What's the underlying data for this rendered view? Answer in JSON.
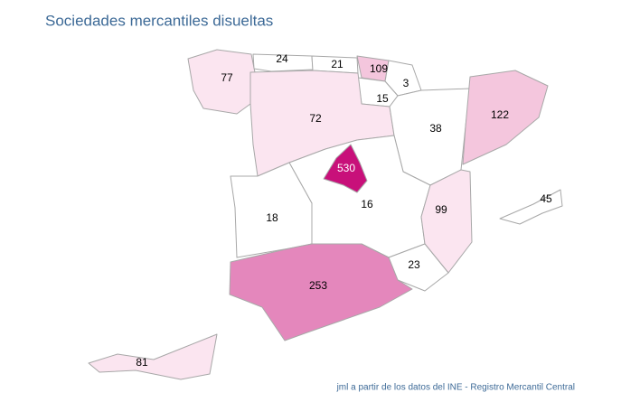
{
  "title": "Sociedades mercantiles disueltas",
  "regions": [
    {
      "value": 77,
      "color": "#fbe5f0"
    },
    {
      "value": 24,
      "color": "#ffffff"
    },
    {
      "value": 21,
      "color": "#ffffff"
    },
    {
      "value": 109,
      "color": "#f4c6dd"
    },
    {
      "value": 3,
      "color": "#ffffff"
    },
    {
      "value": 15,
      "color": "#ffffff"
    },
    {
      "value": 72,
      "color": "#fbe5f0"
    },
    {
      "value": 38,
      "color": "#ffffff"
    },
    {
      "value": 122,
      "color": "#f4c6dd"
    },
    {
      "value": 530,
      "color": "#c8107a"
    },
    {
      "value": 16,
      "color": "#ffffff"
    },
    {
      "value": 18,
      "color": "#ffffff"
    },
    {
      "value": 99,
      "color": "#fbe5f0"
    },
    {
      "value": 23,
      "color": "#ffffff"
    },
    {
      "value": 253,
      "color": "#e487bc"
    },
    {
      "value": 45,
      "color": "#ffffff"
    },
    {
      "value": 81,
      "color": "#fbe5f0"
    }
  ],
  "source": "jml a partir de los datos del INE - Registro Mercantil Central"
}
